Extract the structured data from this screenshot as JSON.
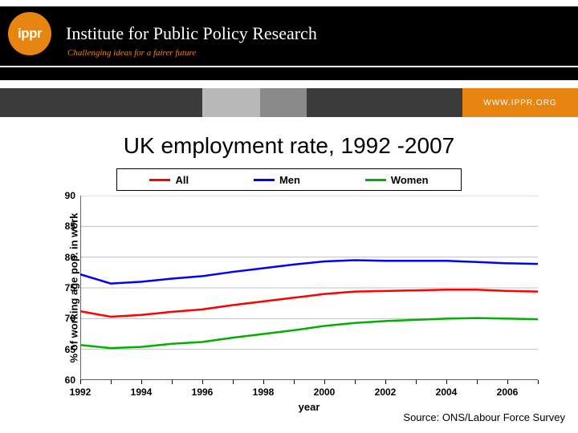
{
  "header": {
    "logo_text": "ippr",
    "logo_bg": "#e88410",
    "institute": "Institute for Public Policy Research",
    "tagline": "Challenging ideas for a fairer future",
    "url": "WWW.IPPR.ORG"
  },
  "bar_segments": [
    {
      "width_pct": 35,
      "color": "#3b3b3b"
    },
    {
      "width_pct": 10,
      "color": "#b9b9b9"
    },
    {
      "width_pct": 8,
      "color": "#8a8a8a"
    },
    {
      "width_pct": 27,
      "color": "#3b3b3b"
    },
    {
      "width_pct": 20,
      "color": "#e88410"
    }
  ],
  "slide_title": "UK employment rate, 1992 -2007",
  "chart": {
    "type": "line",
    "background_color": "#ffffff",
    "grid_color": "#c0c0c0",
    "axis_color": "#000000",
    "ylabel": "% of working age pop. in work",
    "xlabel": "year",
    "label_fontsize": 13,
    "tick_fontsize": 12,
    "line_width": 2.5,
    "ylim": [
      60,
      90
    ],
    "ytick_step": 5,
    "x_values": [
      1992,
      1993,
      1994,
      1995,
      1996,
      1997,
      1998,
      1999,
      2000,
      2001,
      2002,
      2003,
      2004,
      2005,
      2006,
      2007
    ],
    "x_ticks": [
      1992,
      1994,
      1996,
      1998,
      2000,
      2002,
      2004,
      2006
    ],
    "series": [
      {
        "name": "All",
        "label": "All",
        "color": "#ff0000",
        "values": [
          71.2,
          70.3,
          70.6,
          71.1,
          71.5,
          72.2,
          72.8,
          73.4,
          74.0,
          74.4,
          74.5,
          74.6,
          74.7,
          74.7,
          74.5,
          74.4
        ]
      },
      {
        "name": "Men",
        "label": "Men",
        "color": "#0000ff",
        "values": [
          77.2,
          75.7,
          76.0,
          76.5,
          76.9,
          77.6,
          78.2,
          78.8,
          79.3,
          79.5,
          79.4,
          79.4,
          79.4,
          79.2,
          79.0,
          78.9
        ]
      },
      {
        "name": "Women",
        "label": "Women",
        "color": "#00b000",
        "values": [
          65.7,
          65.2,
          65.4,
          65.9,
          66.2,
          66.9,
          67.5,
          68.1,
          68.8,
          69.3,
          69.6,
          69.8,
          70.0,
          70.1,
          70.0,
          69.9
        ]
      }
    ],
    "legend": {
      "border_color": "#000000",
      "fontsize": 13
    }
  },
  "source": "Source: ONS/Labour Force Survey"
}
